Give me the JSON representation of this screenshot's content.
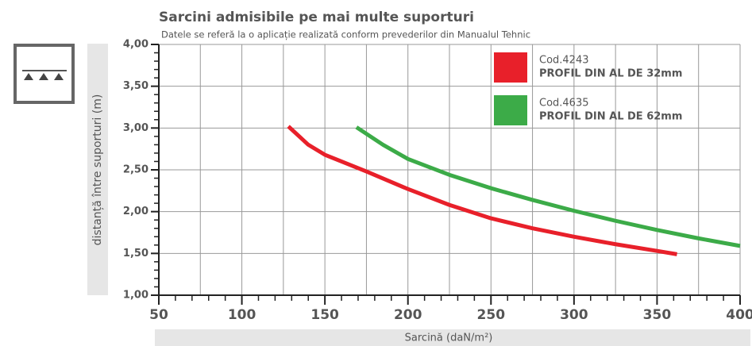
{
  "chart_data": {
    "type": "line",
    "title": "Sarcini admisibile pe mai multe suporturi",
    "subtitle": "Datele se referă la o aplicație realizată conform prevederilor din Manualul Tehnic",
    "xlabel": "Sarcină (daN/m²)",
    "ylabel": "distanță între suporturi (m)",
    "xlim": [
      50,
      400
    ],
    "ylim": [
      1,
      4
    ],
    "xticks": [
      50,
      100,
      150,
      200,
      250,
      300,
      350,
      400
    ],
    "yticks": [
      {
        "value": 1,
        "label": "1,00"
      },
      {
        "value": 1.5,
        "label": "1,50"
      },
      {
        "value": 2,
        "label": "2,00"
      },
      {
        "value": 2.5,
        "label": "2,50"
      },
      {
        "value": 3,
        "label": "3,00"
      },
      {
        "value": 3.5,
        "label": "3,50"
      },
      {
        "value": 4,
        "label": "4,00"
      }
    ],
    "xgrid": [
      75,
      125,
      175,
      225,
      275,
      325,
      375
    ],
    "xminorticks": [
      60,
      70,
      80,
      90,
      110,
      120,
      130,
      140,
      160,
      170,
      180,
      190,
      210,
      220,
      230,
      240,
      260,
      270,
      280,
      290,
      310,
      320,
      330,
      340,
      360,
      370,
      380,
      390
    ],
    "yminorticks": [
      1.1,
      1.2,
      1.3,
      1.4,
      1.6,
      1.7,
      1.8,
      1.9,
      2.1,
      2.2,
      2.3,
      2.4,
      2.6,
      2.7,
      2.8,
      2.9,
      3.1,
      3.2,
      3.3,
      3.4,
      3.6,
      3.7,
      3.8,
      3.9
    ],
    "grid": true,
    "legend": "upper right",
    "series": [
      {
        "name": "Cod.4243",
        "profile": "PROFIL DIN AL DE 32mm",
        "color": "#e8202a",
        "x": [
          128,
          140,
          150,
          175,
          200,
          225,
          250,
          275,
          300,
          325,
          350,
          362
        ],
        "values": [
          3.02,
          2.8,
          2.68,
          2.48,
          2.27,
          2.08,
          1.92,
          1.8,
          1.7,
          1.61,
          1.53,
          1.49
        ]
      },
      {
        "name": "Cod.4635",
        "profile": "PROFIL DIN AL DE 62mm",
        "color": "#3cab48",
        "x": [
          169,
          185,
          200,
          225,
          250,
          275,
          300,
          325,
          350,
          375,
          400
        ],
        "values": [
          3.01,
          2.8,
          2.63,
          2.44,
          2.28,
          2.14,
          2.01,
          1.89,
          1.78,
          1.68,
          1.59
        ]
      }
    ]
  }
}
